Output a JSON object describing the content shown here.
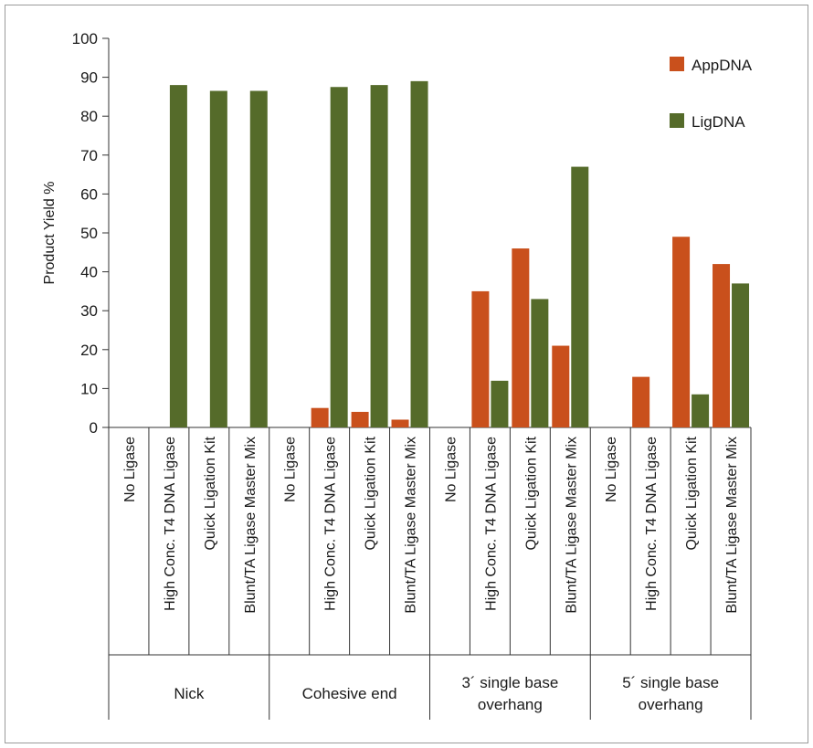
{
  "chart_data": {
    "type": "bar",
    "ylabel": "Product Yield %",
    "ylim": [
      0,
      100
    ],
    "yticks": [
      "0",
      "10",
      "20",
      "30",
      "40",
      "50",
      "60",
      "70",
      "80",
      "90",
      "100"
    ],
    "grid": false,
    "legend_position": "top-right",
    "groups": [
      {
        "label": "Nick",
        "categories": [
          "No Ligase",
          "High Conc. T4 DNA Ligase",
          "Quick Ligation Kit",
          "Blunt/TA Ligase Master Mix"
        ]
      },
      {
        "label": "Cohesive end",
        "categories": [
          "No Ligase",
          "High Conc. T4 DNA Ligase",
          "Quick Ligation Kit",
          "Blunt/TA Ligase Master Mix"
        ]
      },
      {
        "label": "3´ single base overhang",
        "categories": [
          "No Ligase",
          "High Conc. T4 DNA Ligase",
          "Quick Ligation Kit",
          "Blunt/TA Ligase Master Mix"
        ]
      },
      {
        "label": "5´ single base overhang",
        "categories": [
          "No Ligase",
          "High Conc. T4 DNA Ligase",
          "Quick Ligation Kit",
          "Blunt/TA Ligase Master Mix"
        ]
      }
    ],
    "series": [
      {
        "name": "AppDNA",
        "color": "#c9501c",
        "values": [
          0,
          0,
          0,
          0,
          0,
          5,
          4,
          2,
          0,
          35,
          46,
          21,
          0,
          13,
          49,
          42
        ]
      },
      {
        "name": "LigDNA",
        "color": "#556b2a",
        "values": [
          0,
          88,
          86.5,
          86.5,
          0,
          87.5,
          88,
          89,
          0,
          12,
          33,
          67,
          0,
          0,
          8.5,
          37
        ]
      }
    ]
  }
}
